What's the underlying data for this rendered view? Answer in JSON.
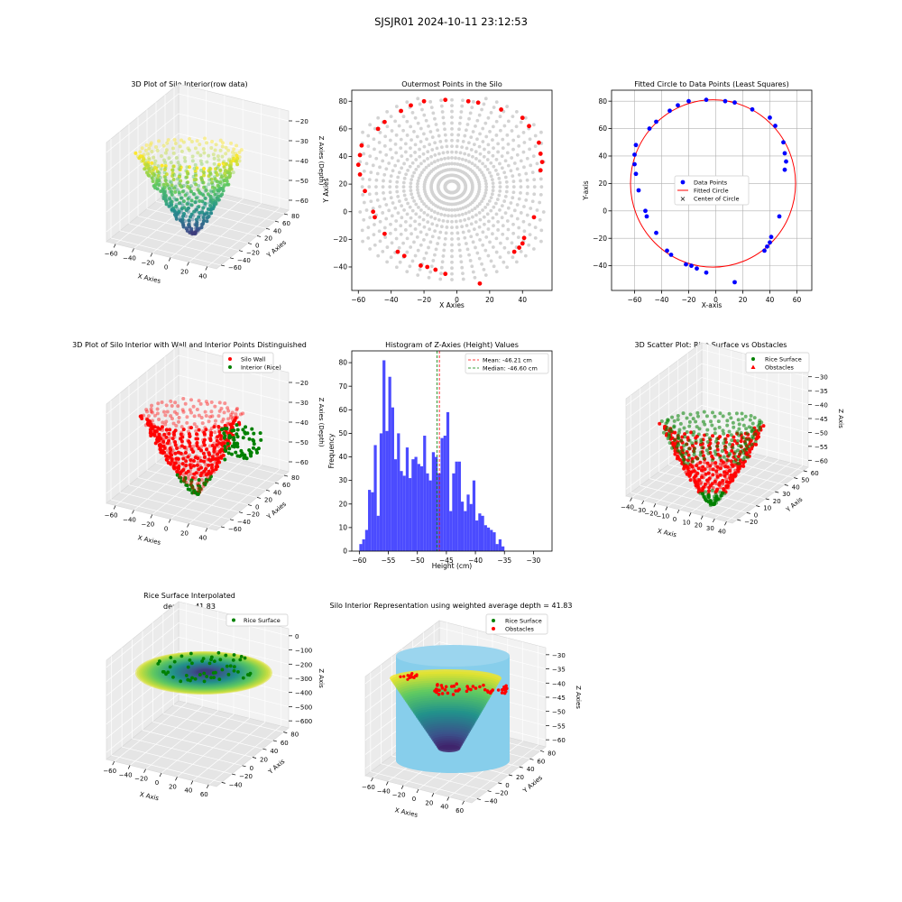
{
  "suptitle": "SJSJR01 2024-10-11 23:12:53",
  "chart_data": [
    {
      "type": "scatter3d",
      "title": "3D Plot of Silo Interior(row data)",
      "xlabel": "X Axies",
      "ylabel": "Y Axies",
      "zlabel": "Z Axies (Depth)",
      "xticks": [
        "−60",
        "−40",
        "−20",
        "0",
        "20",
        "40"
      ],
      "yticks": [
        "−60",
        "−40",
        "−20",
        "0",
        "20",
        "40",
        "60",
        "80"
      ],
      "zticks": [
        "−60",
        "−50",
        "−40",
        "−30",
        "−20"
      ],
      "zlim": [
        -63,
        -17
      ],
      "colormap": "viridis"
    },
    {
      "type": "scatter",
      "title": "Outermost Points in the Silo",
      "xlabel": "X Axies",
      "ylabel": "Y Axies",
      "xticks": [
        "−60",
        "−40",
        "−20",
        "0",
        "20",
        "40"
      ],
      "yticks": [
        "−40",
        "−20",
        "0",
        "20",
        "40",
        "60",
        "80"
      ],
      "xlim": [
        -64,
        58
      ],
      "ylim": [
        -57,
        88
      ],
      "all_color": "#d3d3d3",
      "edge_color": "#ff0000",
      "edge_points": [
        [
          -58,
          48
        ],
        [
          -59,
          41
        ],
        [
          -60,
          34
        ],
        [
          -59,
          27
        ],
        [
          -56,
          15
        ],
        [
          -51,
          0
        ],
        [
          -50,
          -4
        ],
        [
          -44,
          -16
        ],
        [
          -36,
          -29
        ],
        [
          -32,
          -32
        ],
        [
          -22,
          -39
        ],
        [
          -18,
          -40
        ],
        [
          -13,
          -42
        ],
        [
          -7,
          -45
        ],
        [
          14,
          -52
        ],
        [
          35,
          -29
        ],
        [
          38,
          -26
        ],
        [
          40,
          -23
        ],
        [
          41,
          -19
        ],
        [
          47,
          -4
        ],
        [
          51,
          30
        ],
        [
          52,
          36
        ],
        [
          51,
          42
        ],
        [
          50,
          50
        ],
        [
          44,
          62
        ],
        [
          40,
          68
        ],
        [
          27,
          74
        ],
        [
          13,
          79
        ],
        [
          7,
          80
        ],
        [
          -7,
          81
        ],
        [
          -20,
          80
        ],
        [
          -28,
          77
        ],
        [
          -34,
          73
        ],
        [
          -44,
          65
        ],
        [
          -48,
          60
        ]
      ]
    },
    {
      "type": "scatter",
      "title": "Fitted Circle to Data Points (Least Squares)",
      "xlabel": "X-axis",
      "ylabel": "Y-axis",
      "xticks": [
        "−60",
        "−40",
        "−20",
        "0",
        "20",
        "40",
        "60"
      ],
      "yticks": [
        "−40",
        "−20",
        "0",
        "20",
        "40",
        "60",
        "80"
      ],
      "xlim": [
        -77,
        71
      ],
      "ylim": [
        -58,
        88
      ],
      "legend": [
        "Data Points",
        "Fitted Circle",
        "Center of Circle"
      ],
      "legend_loc": "center",
      "circle": {
        "cx": -2,
        "cy": 20,
        "r": 61
      },
      "point_color": "#0000ff",
      "circle_color": "#ff0000",
      "center_color": "#008000",
      "points": [
        [
          -59,
          48
        ],
        [
          -60,
          41
        ],
        [
          -60,
          34
        ],
        [
          -59,
          27
        ],
        [
          -57,
          15
        ],
        [
          -52,
          0
        ],
        [
          -51,
          -4
        ],
        [
          -44,
          -16
        ],
        [
          -36,
          -29
        ],
        [
          -33,
          -32
        ],
        [
          -22,
          -39
        ],
        [
          -18,
          -40
        ],
        [
          -14,
          -42
        ],
        [
          -7,
          -45
        ],
        [
          14,
          -52
        ],
        [
          36,
          -29
        ],
        [
          38,
          -26
        ],
        [
          40,
          -23
        ],
        [
          41,
          -19
        ],
        [
          47,
          -4
        ],
        [
          51,
          30
        ],
        [
          52,
          36
        ],
        [
          51,
          42
        ],
        [
          50,
          50
        ],
        [
          44,
          62
        ],
        [
          40,
          68
        ],
        [
          27,
          74
        ],
        [
          14,
          79
        ],
        [
          7,
          80
        ],
        [
          -7,
          81
        ],
        [
          -20,
          80
        ],
        [
          -28,
          77
        ],
        [
          -34,
          73
        ],
        [
          -44,
          65
        ],
        [
          -49,
          60
        ]
      ]
    },
    {
      "type": "scatter3d",
      "title": "3D Plot of Silo Interior with Wall and Interior Points Distinguished",
      "xlabel": "X Axies",
      "ylabel": "Y Axies",
      "zlabel": "Z Axies (Depth)",
      "xticks": [
        "−60",
        "−40",
        "−20",
        "0",
        "20",
        "40"
      ],
      "yticks": [
        "−60",
        "−40",
        "−20",
        "0",
        "20",
        "40",
        "60",
        "80"
      ],
      "zticks": [
        "−60",
        "−50",
        "−40",
        "−30",
        "−20"
      ],
      "zlim": [
        -63,
        -17
      ],
      "legend": [
        "Silo Wall",
        "Interior (Rice)"
      ],
      "legend_loc": "upper right",
      "wall_color": "#ff0000",
      "interior_color": "#008000"
    },
    {
      "type": "bar",
      "title": "Histogram of Z-Axies (Height) Values",
      "xlabel": "Height (cm)",
      "ylabel": "Frequency",
      "xticks": [
        "−60",
        "−55",
        "−50",
        "−45",
        "−40",
        "−35",
        "−30"
      ],
      "yticks": [
        "0",
        "10",
        "20",
        "30",
        "40",
        "50",
        "60",
        "70",
        "80"
      ],
      "xlim": [
        -61.3,
        -26.8
      ],
      "ylim": [
        0,
        85
      ],
      "bin_start": -60.0,
      "bin_width": 0.5,
      "bar_color": "#4b4bff",
      "values": [
        3,
        5,
        9,
        26,
        25,
        45,
        15,
        50,
        81,
        51,
        74,
        61,
        39,
        50,
        34,
        32,
        44,
        31,
        39,
        40,
        37,
        36,
        49,
        33,
        30,
        42,
        40,
        33,
        48,
        49,
        59,
        17,
        33,
        38,
        38,
        21,
        17,
        24,
        20,
        30,
        13,
        16,
        15,
        11,
        10,
        9,
        8,
        3,
        5,
        2
      ],
      "mean": -46.21,
      "median": -46.6,
      "legend": [
        "Mean: -46.21 cm",
        "Median: -46.60 cm"
      ],
      "legend_loc": "upper right",
      "mean_color": "#ff0000",
      "median_color": "#008000"
    },
    {
      "type": "scatter3d",
      "title": "3D Scatter Plot: Rice Surface vs Obstacles",
      "xlabel": "X Axis",
      "ylabel": "Y Axis",
      "zlabel": "Z Axis",
      "xticks": [
        "−40",
        "−30",
        "−20",
        "−10",
        "0",
        "10",
        "20",
        "30",
        "40"
      ],
      "yticks": [
        "−20",
        "0",
        "10",
        "20",
        "30",
        "40",
        "50",
        "60"
      ],
      "zticks": [
        "−60",
        "−55",
        "−50",
        "−45",
        "−40",
        "−35",
        "−30"
      ],
      "zlim": [
        -62,
        -27
      ],
      "legend": [
        "Rice Surface",
        "Obstacles"
      ],
      "legend_loc": "upper right",
      "rice_color": "#008000",
      "obstacle_color": "#ff0000"
    },
    {
      "type": "surface3d",
      "title": "Rice Surface Interpolated",
      "subtitle": "depth = 41.83",
      "xlabel": "X Axis",
      "ylabel": "Y Axis",
      "zlabel": "Z Axis",
      "xticks": [
        "−60",
        "−40",
        "−20",
        "0",
        "20",
        "40",
        "60"
      ],
      "yticks": [
        "−40",
        "−20",
        "0",
        "20",
        "40",
        "60",
        "80"
      ],
      "zticks": [
        "−600",
        "−500",
        "−400",
        "−300",
        "−200",
        "−100",
        "0"
      ],
      "zlim": [
        -600,
        0
      ],
      "legend": [
        "Rice Surface"
      ],
      "legend_loc": "upper right",
      "rice_color": "#008000"
    },
    {
      "type": "surface3d",
      "title": "Silo Interior Representation using weighted average depth = 41.83",
      "xlabel": "X Axies",
      "ylabel": "Y Axies",
      "zlabel": "Z Axies",
      "xticks": [
        "−60",
        "−40",
        "−20",
        "0",
        "20",
        "40",
        "60"
      ],
      "yticks": [
        "−40",
        "−20",
        "0",
        "20",
        "40",
        "60",
        "80"
      ],
      "zticks": [
        "−60",
        "−55",
        "−50",
        "−45",
        "−40",
        "−35",
        "−30"
      ],
      "zlim": [
        -62,
        -27
      ],
      "legend": [
        "Rice Surface",
        "Obstacles"
      ],
      "legend_loc": "upper right",
      "cylinder_color": "#87ceeb",
      "rice_color": "#008000",
      "obstacle_color": "#ff0000"
    }
  ]
}
